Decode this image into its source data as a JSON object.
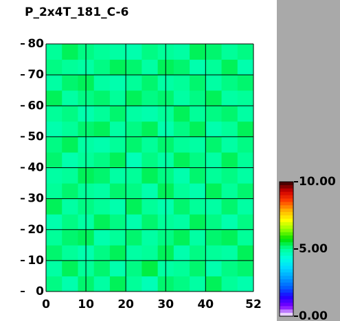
{
  "chart_data": {
    "type": "heatmap",
    "title": "P_2x4T_181_C-6",
    "xlim": [
      0,
      52
    ],
    "ylim": [
      0,
      80
    ],
    "xticks": [
      0,
      10,
      20,
      30,
      40,
      52
    ],
    "yticks": [
      0,
      10,
      20,
      30,
      40,
      50,
      60,
      70,
      80
    ],
    "grid": true,
    "x_edges": [
      0,
      4,
      8,
      12,
      16,
      20,
      24,
      28,
      32,
      36,
      40,
      44,
      48,
      52
    ],
    "y_edges": [
      0,
      5,
      10,
      15,
      20,
      25,
      30,
      35,
      40,
      45,
      50,
      55,
      60,
      65,
      70,
      75,
      80
    ],
    "values": [
      [
        5.1,
        4.8,
        5.2,
        4.9,
        5.3,
        5.0,
        4.7,
        5.2,
        5.1,
        4.9,
        5.3,
        5.0,
        4.8
      ],
      [
        4.9,
        5.3,
        5.0,
        5.2,
        4.8,
        5.1,
        5.4,
        4.9,
        5.0,
        5.2,
        4.8,
        5.1,
        5.2
      ],
      [
        5.2,
        5.0,
        4.8,
        5.1,
        5.3,
        4.9,
        5.0,
        5.3,
        4.8,
        5.1,
        5.0,
        4.9,
        5.3
      ],
      [
        5.0,
        5.2,
        5.3,
        4.8,
        5.0,
        5.2,
        4.9,
        5.1,
        5.3,
        4.9,
        5.2,
        5.3,
        5.0
      ],
      [
        4.8,
        5.1,
        4.9,
        5.3,
        5.1,
        4.8,
        5.2,
        5.0,
        4.9,
        5.3,
        5.1,
        4.8,
        5.1
      ],
      [
        5.3,
        4.9,
        5.1,
        5.0,
        4.8,
        5.3,
        5.0,
        4.8,
        5.2,
        5.0,
        4.9,
        5.2,
        4.9
      ],
      [
        5.0,
        5.2,
        5.0,
        4.9,
        5.2,
        5.1,
        4.8,
        5.3,
        5.0,
        4.8,
        5.3,
        5.0,
        5.2
      ],
      [
        4.9,
        5.0,
        5.3,
        5.2,
        4.9,
        5.0,
        5.3,
        5.1,
        4.8,
        5.2,
        5.0,
        5.1,
        4.9
      ],
      [
        5.2,
        4.8,
        5.0,
        5.1,
        5.3,
        4.7,
        5.1,
        4.9,
        5.3,
        5.1,
        4.9,
        5.3,
        5.0
      ],
      [
        5.1,
        5.3,
        4.9,
        4.8,
        5.0,
        5.2,
        5.0,
        5.2,
        5.0,
        4.9,
        5.2,
        4.9,
        5.1
      ],
      [
        4.8,
        5.0,
        5.2,
        5.3,
        4.9,
        5.1,
        5.3,
        4.8,
        5.1,
        5.3,
        4.8,
        5.0,
        5.3
      ],
      [
        5.0,
        5.1,
        4.8,
        5.0,
        5.2,
        4.9,
        4.8,
        5.0,
        5.3,
        5.0,
        5.1,
        5.2,
        4.9
      ],
      [
        5.3,
        4.9,
        5.1,
        5.2,
        5.0,
        5.3,
        5.1,
        5.2,
        4.9,
        5.1,
        5.3,
        4.9,
        5.0
      ],
      [
        4.9,
        5.2,
        5.3,
        4.9,
        4.8,
        5.0,
        5.2,
        4.9,
        5.0,
        5.2,
        4.9,
        5.1,
        5.2
      ],
      [
        5.1,
        5.0,
        4.9,
        5.1,
        5.3,
        5.2,
        4.9,
        5.3,
        5.2,
        4.8,
        5.0,
        5.3,
        4.8
      ],
      [
        5.0,
        5.3,
        5.1,
        5.0,
        4.9,
        4.8,
        5.1,
        5.0,
        4.9,
        5.3,
        5.2,
        5.0,
        5.1
      ]
    ],
    "colorbar": {
      "range": [
        0,
        10
      ],
      "ticks": [
        {
          "value": 0,
          "label": "0.00"
        },
        {
          "value": 5,
          "label": "5.00"
        },
        {
          "value": 10,
          "label": "10.00"
        }
      ],
      "colors": [
        "#ffffff",
        "#8000ff",
        "#2000ff",
        "#0060ff",
        "#00a0ff",
        "#00d8ff",
        "#00ffe0",
        "#00ff99",
        "#00e000",
        "#90ff00",
        "#ffff00",
        "#ffb000",
        "#ff4000",
        "#d00000",
        "#300000"
      ]
    }
  }
}
